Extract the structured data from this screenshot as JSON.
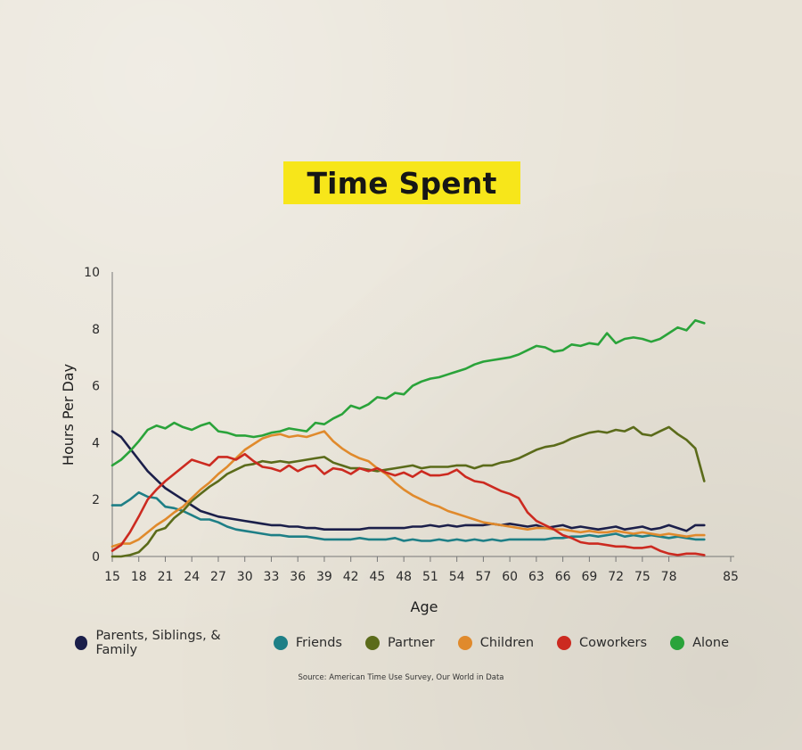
{
  "chart_data": {
    "type": "line",
    "title": "Time Spent",
    "xlabel": "Age",
    "ylabel": "Hours Per Day",
    "xlim": [
      15,
      85
    ],
    "ylim": [
      0,
      10
    ],
    "x_ticks": [
      15,
      18,
      21,
      24,
      27,
      30,
      33,
      36,
      39,
      42,
      45,
      48,
      51,
      54,
      57,
      60,
      63,
      66,
      69,
      72,
      75,
      78,
      85
    ],
    "y_ticks": [
      0,
      2,
      4,
      6,
      8,
      10
    ],
    "legend_position": "bottom",
    "source": "Source: American Time Use Survey, Our World in Data",
    "series": [
      {
        "name": "Parents, Siblings, & Family",
        "color": "#1b1f4a",
        "x": [
          15,
          16,
          17,
          18,
          19,
          20,
          21,
          22,
          23,
          24,
          25,
          26,
          27,
          28,
          29,
          30,
          31,
          32,
          33,
          34,
          35,
          36,
          37,
          38,
          39,
          40,
          41,
          42,
          43,
          44,
          45,
          46,
          47,
          48,
          49,
          50,
          51,
          52,
          53,
          54,
          55,
          56,
          57,
          58,
          59,
          60,
          61,
          62,
          63,
          64,
          65,
          66,
          67,
          68,
          69,
          70,
          71,
          72,
          73,
          74,
          75,
          76,
          77,
          78,
          79,
          80,
          81,
          82
        ],
        "y": [
          4.4,
          4.2,
          3.8,
          3.4,
          3.0,
          2.7,
          2.4,
          2.2,
          2.0,
          1.8,
          1.6,
          1.5,
          1.4,
          1.35,
          1.3,
          1.25,
          1.2,
          1.15,
          1.1,
          1.1,
          1.05,
          1.05,
          1.0,
          1.0,
          0.95,
          0.95,
          0.95,
          0.95,
          0.95,
          1.0,
          1.0,
          1.0,
          1.0,
          1.0,
          1.05,
          1.05,
          1.1,
          1.05,
          1.1,
          1.05,
          1.1,
          1.1,
          1.1,
          1.15,
          1.1,
          1.15,
          1.1,
          1.05,
          1.1,
          1.0,
          1.05,
          1.1,
          1.0,
          1.05,
          1.0,
          0.95,
          1.0,
          1.05,
          0.95,
          1.0,
          1.05,
          0.95,
          1.0,
          1.1,
          1.0,
          0.9,
          1.1,
          1.1
        ]
      },
      {
        "name": "Friends",
        "color": "#1e7f86",
        "x": [
          15,
          16,
          17,
          18,
          19,
          20,
          21,
          22,
          23,
          24,
          25,
          26,
          27,
          28,
          29,
          30,
          31,
          32,
          33,
          34,
          35,
          36,
          37,
          38,
          39,
          40,
          41,
          42,
          43,
          44,
          45,
          46,
          47,
          48,
          49,
          50,
          51,
          52,
          53,
          54,
          55,
          56,
          57,
          58,
          59,
          60,
          61,
          62,
          63,
          64,
          65,
          66,
          67,
          68,
          69,
          70,
          71,
          72,
          73,
          74,
          75,
          76,
          77,
          78,
          79,
          80,
          81,
          82
        ],
        "y": [
          1.8,
          1.8,
          2.0,
          2.25,
          2.1,
          2.05,
          1.75,
          1.7,
          1.6,
          1.45,
          1.3,
          1.3,
          1.2,
          1.05,
          0.95,
          0.9,
          0.85,
          0.8,
          0.75,
          0.75,
          0.7,
          0.7,
          0.7,
          0.65,
          0.6,
          0.6,
          0.6,
          0.6,
          0.65,
          0.6,
          0.6,
          0.6,
          0.65,
          0.55,
          0.6,
          0.55,
          0.55,
          0.6,
          0.55,
          0.6,
          0.55,
          0.6,
          0.55,
          0.6,
          0.55,
          0.6,
          0.6,
          0.6,
          0.6,
          0.6,
          0.65,
          0.65,
          0.7,
          0.7,
          0.75,
          0.7,
          0.75,
          0.8,
          0.7,
          0.75,
          0.7,
          0.75,
          0.7,
          0.65,
          0.7,
          0.65,
          0.6,
          0.6
        ]
      },
      {
        "name": "Partner",
        "color": "#5b6b1a",
        "x": [
          15,
          16,
          17,
          18,
          19,
          20,
          21,
          22,
          23,
          24,
          25,
          26,
          27,
          28,
          29,
          30,
          31,
          32,
          33,
          34,
          35,
          36,
          37,
          38,
          39,
          40,
          41,
          42,
          43,
          44,
          45,
          46,
          47,
          48,
          49,
          50,
          51,
          52,
          53,
          54,
          55,
          56,
          57,
          58,
          59,
          60,
          61,
          62,
          63,
          64,
          65,
          66,
          67,
          68,
          69,
          70,
          71,
          72,
          73,
          74,
          75,
          76,
          77,
          78,
          79,
          80,
          81,
          82
        ],
        "y": [
          0.0,
          0.0,
          0.05,
          0.15,
          0.45,
          0.9,
          1.0,
          1.35,
          1.6,
          1.95,
          2.2,
          2.45,
          2.65,
          2.9,
          3.05,
          3.2,
          3.25,
          3.35,
          3.3,
          3.35,
          3.3,
          3.35,
          3.4,
          3.45,
          3.5,
          3.3,
          3.2,
          3.1,
          3.1,
          3.05,
          3.0,
          3.05,
          3.1,
          3.15,
          3.2,
          3.1,
          3.15,
          3.15,
          3.15,
          3.2,
          3.2,
          3.1,
          3.2,
          3.2,
          3.3,
          3.35,
          3.45,
          3.6,
          3.75,
          3.85,
          3.9,
          4.0,
          4.15,
          4.25,
          4.35,
          4.4,
          4.35,
          4.45,
          4.4,
          4.55,
          4.3,
          4.25,
          4.4,
          4.55,
          4.3,
          4.1,
          3.8,
          2.65
        ]
      },
      {
        "name": "Children",
        "color": "#e08a2c",
        "x": [
          15,
          16,
          17,
          18,
          19,
          20,
          21,
          22,
          23,
          24,
          25,
          26,
          27,
          28,
          29,
          30,
          31,
          32,
          33,
          34,
          35,
          36,
          37,
          38,
          39,
          40,
          41,
          42,
          43,
          44,
          45,
          46,
          47,
          48,
          49,
          50,
          51,
          52,
          53,
          54,
          55,
          56,
          57,
          58,
          59,
          60,
          61,
          62,
          63,
          64,
          65,
          66,
          67,
          68,
          69,
          70,
          71,
          72,
          73,
          74,
          75,
          76,
          77,
          78,
          79,
          80,
          81,
          82
        ],
        "y": [
          0.35,
          0.45,
          0.45,
          0.6,
          0.85,
          1.1,
          1.3,
          1.55,
          1.75,
          2.05,
          2.35,
          2.6,
          2.9,
          3.15,
          3.45,
          3.75,
          3.95,
          4.15,
          4.25,
          4.3,
          4.2,
          4.25,
          4.2,
          4.3,
          4.4,
          4.05,
          3.8,
          3.6,
          3.45,
          3.35,
          3.1,
          2.9,
          2.6,
          2.35,
          2.15,
          2.0,
          1.85,
          1.75,
          1.6,
          1.5,
          1.4,
          1.3,
          1.2,
          1.15,
          1.1,
          1.05,
          1.0,
          0.95,
          1.0,
          1.0,
          0.95,
          0.95,
          0.9,
          0.85,
          0.9,
          0.85,
          0.85,
          0.9,
          0.85,
          0.8,
          0.85,
          0.8,
          0.75,
          0.8,
          0.75,
          0.7,
          0.75,
          0.75
        ]
      },
      {
        "name": "Coworkers",
        "color": "#cc2a20",
        "x": [
          15,
          16,
          17,
          18,
          19,
          20,
          21,
          22,
          23,
          24,
          25,
          26,
          27,
          28,
          29,
          30,
          31,
          32,
          33,
          34,
          35,
          36,
          37,
          38,
          39,
          40,
          41,
          42,
          43,
          44,
          45,
          46,
          47,
          48,
          49,
          50,
          51,
          52,
          53,
          54,
          55,
          56,
          57,
          58,
          59,
          60,
          61,
          62,
          63,
          64,
          65,
          66,
          67,
          68,
          69,
          70,
          71,
          72,
          73,
          74,
          75,
          76,
          77,
          78,
          79,
          80,
          81,
          82
        ],
        "y": [
          0.2,
          0.4,
          0.85,
          1.4,
          2.0,
          2.35,
          2.65,
          2.9,
          3.15,
          3.4,
          3.3,
          3.2,
          3.5,
          3.5,
          3.4,
          3.6,
          3.35,
          3.15,
          3.1,
          3.0,
          3.2,
          3.0,
          3.15,
          3.2,
          2.9,
          3.1,
          3.05,
          2.9,
          3.1,
          3.0,
          3.1,
          2.95,
          2.85,
          2.95,
          2.8,
          3.0,
          2.85,
          2.85,
          2.9,
          3.05,
          2.8,
          2.65,
          2.6,
          2.45,
          2.3,
          2.2,
          2.05,
          1.55,
          1.25,
          1.1,
          0.95,
          0.75,
          0.65,
          0.5,
          0.45,
          0.45,
          0.4,
          0.35,
          0.35,
          0.3,
          0.3,
          0.35,
          0.2,
          0.1,
          0.05,
          0.1,
          0.1,
          0.05
        ]
      },
      {
        "name": "Alone",
        "color": "#2aa33a",
        "x": [
          15,
          16,
          17,
          18,
          19,
          20,
          21,
          22,
          23,
          24,
          25,
          26,
          27,
          28,
          29,
          30,
          31,
          32,
          33,
          34,
          35,
          36,
          37,
          38,
          39,
          40,
          41,
          42,
          43,
          44,
          45,
          46,
          47,
          48,
          49,
          50,
          51,
          52,
          53,
          54,
          55,
          56,
          57,
          58,
          59,
          60,
          61,
          62,
          63,
          64,
          65,
          66,
          67,
          68,
          69,
          70,
          71,
          72,
          73,
          74,
          75,
          76,
          77,
          78,
          79,
          80,
          81,
          82
        ],
        "y": [
          3.2,
          3.4,
          3.7,
          4.05,
          4.45,
          4.6,
          4.5,
          4.7,
          4.55,
          4.45,
          4.6,
          4.7,
          4.4,
          4.35,
          4.25,
          4.25,
          4.2,
          4.25,
          4.35,
          4.4,
          4.5,
          4.45,
          4.4,
          4.7,
          4.65,
          4.85,
          5.0,
          5.3,
          5.2,
          5.35,
          5.6,
          5.55,
          5.75,
          5.7,
          6.0,
          6.15,
          6.25,
          6.3,
          6.4,
          6.5,
          6.6,
          6.75,
          6.85,
          6.9,
          6.95,
          7.0,
          7.1,
          7.25,
          7.4,
          7.35,
          7.2,
          7.25,
          7.45,
          7.4,
          7.5,
          7.45,
          7.85,
          7.5,
          7.65,
          7.7,
          7.65,
          7.55,
          7.65,
          7.85,
          8.05,
          7.95,
          8.3,
          8.2
        ]
      }
    ]
  }
}
